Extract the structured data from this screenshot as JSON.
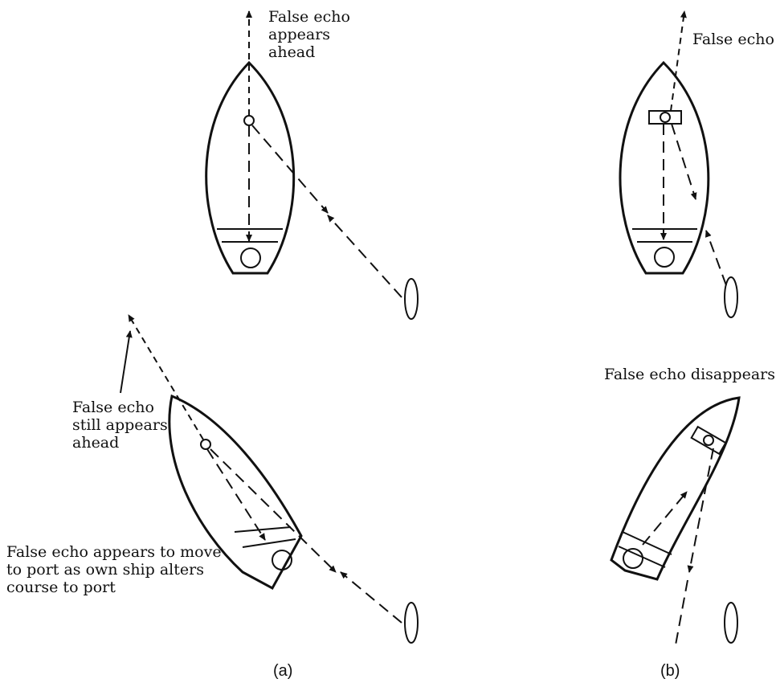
{
  "labels": {
    "a_top": "False echo\nappears\nahead",
    "b_top": "False echo",
    "a_bottom_ahead": "False echo\nstill appears\nahead",
    "a_bottom_port": "False echo appears to move\nto port as own ship alters\ncourse to port",
    "b_bottom": "False echo disappears"
  },
  "captions": {
    "a": "(a)",
    "b": "(b)"
  }
}
